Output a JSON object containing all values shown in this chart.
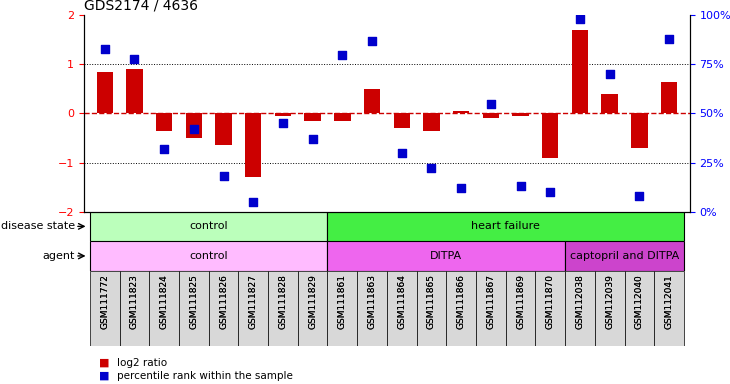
{
  "title": "GDS2174 / 4636",
  "samples": [
    "GSM111772",
    "GSM111823",
    "GSM111824",
    "GSM111825",
    "GSM111826",
    "GSM111827",
    "GSM111828",
    "GSM111829",
    "GSM111861",
    "GSM111863",
    "GSM111864",
    "GSM111865",
    "GSM111866",
    "GSM111867",
    "GSM111869",
    "GSM111870",
    "GSM112038",
    "GSM112039",
    "GSM112040",
    "GSM112041"
  ],
  "log2_ratio": [
    0.85,
    0.9,
    -0.35,
    -0.5,
    -0.65,
    -1.3,
    -0.05,
    -0.15,
    -0.15,
    0.5,
    -0.3,
    -0.35,
    0.05,
    -0.1,
    -0.05,
    -0.9,
    1.7,
    0.4,
    -0.7,
    0.65
  ],
  "percentile": [
    83,
    78,
    32,
    42,
    18,
    5,
    45,
    37,
    80,
    87,
    30,
    22,
    12,
    55,
    13,
    10,
    98,
    70,
    8,
    88
  ],
  "bar_color": "#cc0000",
  "dot_color": "#0000cc",
  "ylim_left": [
    -2,
    2
  ],
  "ylim_right": [
    0,
    100
  ],
  "yticks_left": [
    -2,
    -1,
    0,
    1,
    2
  ],
  "yticks_right": [
    0,
    25,
    50,
    75,
    100
  ],
  "ytick_labels_right": [
    "0%",
    "25%",
    "50%",
    "75%",
    "100%"
  ],
  "hlines": [
    1.0,
    -1.0
  ],
  "hline_zero_color": "#cc0000",
  "hline_color": "black",
  "disease_state_groups": [
    {
      "label": "control",
      "start": 0,
      "end": 7,
      "color": "#bbffbb"
    },
    {
      "label": "heart failure",
      "start": 8,
      "end": 19,
      "color": "#44ee44"
    }
  ],
  "agent_groups": [
    {
      "label": "control",
      "start": 0,
      "end": 7,
      "color": "#ffbbff"
    },
    {
      "label": "DITPA",
      "start": 8,
      "end": 15,
      "color": "#ee66ee"
    },
    {
      "label": "captopril and DITPA",
      "start": 16,
      "end": 19,
      "color": "#cc44cc"
    }
  ],
  "legend_items": [
    {
      "label": "log2 ratio",
      "color": "#cc0000"
    },
    {
      "label": "percentile rank within the sample",
      "color": "#0000cc"
    }
  ],
  "label_row1": "disease state",
  "label_row2": "agent",
  "bar_width": 0.55,
  "dot_size": 28
}
